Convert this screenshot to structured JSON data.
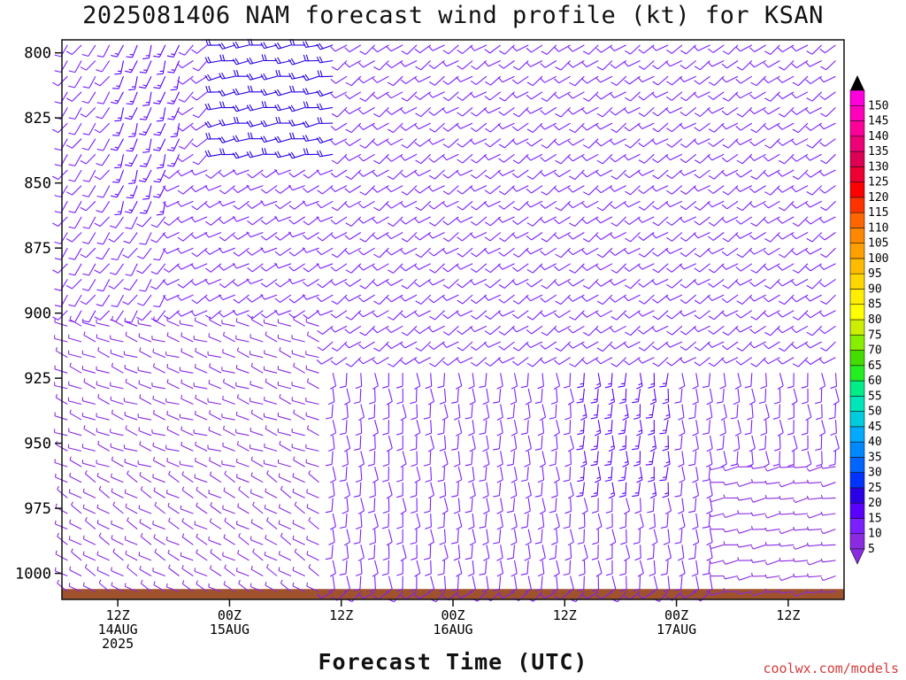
{
  "title": "2025081406 NAM forecast wind profile (kt) for KSAN",
  "credit": "coolwx.com/models",
  "chart_data": {
    "type": "wind-barb-timeheight",
    "title": "2025081406 NAM forecast wind profile (kt) for KSAN",
    "xlabel": "Forecast Time (UTC)",
    "ylabel": "",
    "y_axis": {
      "unit": "hPa",
      "ticks": [
        800,
        825,
        850,
        875,
        900,
        925,
        950,
        975,
        1000
      ],
      "range": [
        1010,
        795
      ],
      "inverted": true
    },
    "x_axis": {
      "range_hours": [
        0,
        84
      ],
      "ticks": [
        {
          "hour": 6,
          "lines": [
            "12Z",
            "14AUG",
            "2025"
          ]
        },
        {
          "hour": 18,
          "lines": [
            "00Z",
            "15AUG"
          ]
        },
        {
          "hour": 30,
          "lines": [
            "12Z"
          ]
        },
        {
          "hour": 42,
          "lines": [
            "00Z",
            "16AUG"
          ]
        },
        {
          "hour": 54,
          "lines": [
            "12Z"
          ]
        },
        {
          "hour": 66,
          "lines": [
            "00Z",
            "17AUG"
          ]
        },
        {
          "hour": 78,
          "lines": [
            "12Z"
          ]
        }
      ]
    },
    "colorbar": {
      "label_unit": "kt",
      "levels": [
        5,
        10,
        15,
        20,
        25,
        30,
        35,
        40,
        45,
        50,
        55,
        60,
        65,
        70,
        75,
        80,
        85,
        90,
        95,
        100,
        105,
        110,
        115,
        120,
        125,
        130,
        135,
        140,
        145,
        150
      ],
      "colors": [
        "#8a2be2",
        "#7b1fff",
        "#5a00ff",
        "#2a00e6",
        "#0033ff",
        "#0066ff",
        "#0088ff",
        "#00aaff",
        "#00ccdd",
        "#00e6bb",
        "#00ee88",
        "#22ee22",
        "#44dd00",
        "#88ee00",
        "#ccee00",
        "#ffff00",
        "#ffee00",
        "#ffd700",
        "#ffbb00",
        "#ffa000",
        "#ff8800",
        "#ff6600",
        "#ff3300",
        "#ff0000",
        "#ee0033",
        "#dd0055",
        "#ee0077",
        "#ff0099",
        "#ff00bb",
        "#ff00dd"
      ],
      "tick_labels": [
        "5",
        "10",
        "15",
        "20",
        "25",
        "30",
        "35",
        "40",
        "45",
        "50",
        "55",
        "60",
        "65",
        "70",
        "75",
        "80",
        "85",
        "90",
        "95",
        "100",
        "105",
        "110",
        "115",
        "120",
        "125",
        "130",
        "135",
        "140",
        "145",
        "150"
      ]
    },
    "terrain": {
      "color": "#a0522d",
      "surface_pressure_hpa": 1006
    },
    "barb_levels_hpa": [
      797,
      803,
      809,
      815,
      821,
      827,
      833,
      839,
      845,
      851,
      857,
      863,
      869,
      875,
      881,
      887,
      893,
      899,
      905,
      911,
      917,
      923,
      929,
      935,
      941,
      947,
      953,
      959,
      965,
      971,
      977,
      983,
      989,
      995,
      1001,
      1007
    ],
    "barb_time_step_hours": 1.5,
    "regions": [
      {
        "p_min": 795,
        "p_max": 905,
        "h_min": 0,
        "h_max": 12,
        "dir": 215,
        "spd": 12
      },
      {
        "p_min": 795,
        "p_max": 860,
        "h_min": 6,
        "h_max": 13,
        "dir": 200,
        "spd": 18
      },
      {
        "p_min": 795,
        "p_max": 840,
        "h_min": 17,
        "h_max": 30,
        "dir": 260,
        "spd": 22
      },
      {
        "p_min": 840,
        "p_max": 905,
        "h_min": 12,
        "h_max": 30,
        "dir": 240,
        "spd": 14
      },
      {
        "p_min": 795,
        "p_max": 920,
        "h_min": 30,
        "h_max": 84,
        "dir": 235,
        "spd": 11
      },
      {
        "p_min": 905,
        "p_max": 960,
        "h_min": 0,
        "h_max": 28,
        "dir": 290,
        "spd": 8
      },
      {
        "p_min": 920,
        "p_max": 1002,
        "h_min": 28,
        "h_max": 84,
        "dir": 175,
        "spd": 10
      },
      {
        "p_min": 920,
        "p_max": 965,
        "h_min": 56,
        "h_max": 66,
        "dir": 180,
        "spd": 17
      },
      {
        "p_min": 960,
        "p_max": 1008,
        "h_min": 0,
        "h_max": 28,
        "dir": 300,
        "spd": 9
      },
      {
        "p_min": 955,
        "p_max": 1008,
        "h_min": 70,
        "h_max": 84,
        "dir": 260,
        "spd": 8
      }
    ]
  }
}
